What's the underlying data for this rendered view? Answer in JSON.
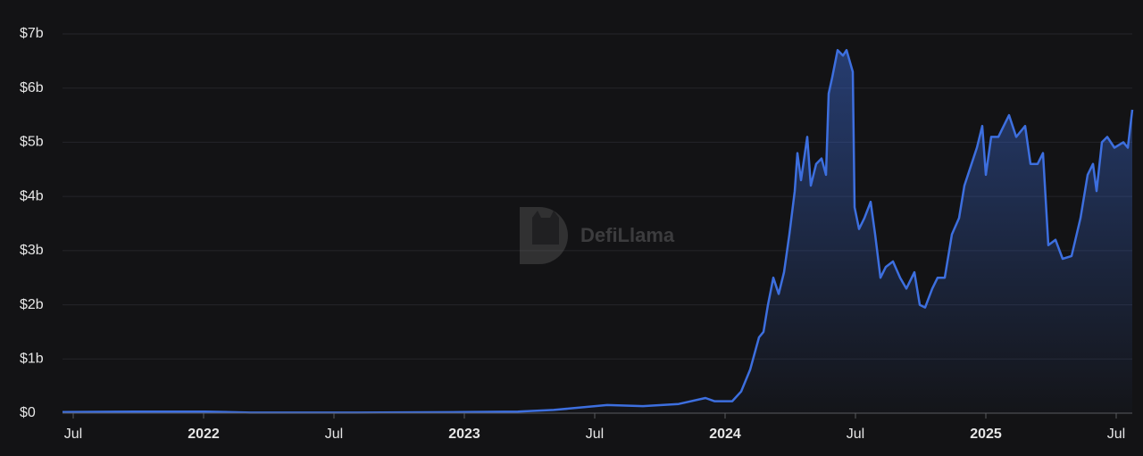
{
  "chart_data": {
    "type": "area",
    "watermark": "DefiLlama",
    "color": "#3d6fdf",
    "grid": true,
    "xlim": [
      2021.4589,
      2025.5616
    ],
    "ylim": [
      0,
      7
    ],
    "xticks": [
      {
        "value": 2021.5,
        "label": "Jul"
      },
      2022,
      {
        "value": 2022.5,
        "label": "Jul"
      },
      2023,
      {
        "value": 2023.5,
        "label": "Jul"
      },
      2024,
      {
        "value": 2024.5,
        "label": "Jul"
      },
      2025,
      {
        "value": 2025.5,
        "label": "Jul"
      }
    ],
    "yticks": [
      {
        "value": 0,
        "label": "$0"
      },
      {
        "value": 1,
        "label": "$1b"
      },
      {
        "value": 2,
        "label": "$2b"
      },
      {
        "value": 3,
        "label": "$3b"
      },
      {
        "value": 4,
        "label": "$4b"
      },
      {
        "value": 5,
        "label": "$5b"
      },
      {
        "value": 6,
        "label": "$6b"
      },
      {
        "value": 7,
        "label": "$7b"
      }
    ],
    "x": [
      2021.4589,
      2021.7329,
      2022.0068,
      2022.1781,
      2022.589,
      2023.0,
      2023.2055,
      2023.3425,
      2023.5479,
      2023.6849,
      2023.8219,
      2023.9247,
      2023.9589,
      2024.0274,
      2024.0616,
      2024.0959,
      2024.1301,
      2024.1473,
      2024.1644,
      2024.1849,
      2024.2055,
      2024.226,
      2024.2466,
      2024.2671,
      2024.2774,
      2024.2911,
      2024.3151,
      2024.3288,
      2024.3493,
      2024.3699,
      2024.387,
      2024.3973,
      2024.411,
      2024.4315,
      2024.4521,
      2024.4658,
      2024.4897,
      2024.4966,
      2024.5137,
      2024.5342,
      2024.5582,
      2024.5753,
      2024.5959,
      2024.6164,
      2024.6438,
      2024.6712,
      2024.6952,
      2024.726,
      2024.7466,
      2024.7671,
      2024.7945,
      2024.8151,
      2024.8425,
      2024.8699,
      2024.8973,
      2024.9178,
      2024.9452,
      2024.9658,
      2024.9863,
      2025.0,
      2025.0205,
      2025.0479,
      2025.0685,
      2025.089,
      2025.1164,
      2025.1507,
      2025.1712,
      2025.1986,
      2025.2192,
      2025.2397,
      2025.2671,
      2025.2945,
      2025.3288,
      2025.363,
      2025.3904,
      2025.411,
      2025.4247,
      2025.4452,
      2025.4658,
      2025.4932,
      2025.5274,
      2025.5445,
      2025.5616
    ],
    "values": [
      0.02,
      0.03,
      0.03,
      0.01,
      0.01,
      0.02,
      0.03,
      0.06,
      0.15,
      0.13,
      0.17,
      0.28,
      0.22,
      0.22,
      0.4,
      0.8,
      1.4,
      1.5,
      2.0,
      2.5,
      2.2,
      2.6,
      3.3,
      4.1,
      4.8,
      4.3,
      5.1,
      4.2,
      4.6,
      4.7,
      4.4,
      5.9,
      6.2,
      6.7,
      6.6,
      6.7,
      6.3,
      3.8,
      3.4,
      3.6,
      3.9,
      3.3,
      2.5,
      2.7,
      2.8,
      2.5,
      2.3,
      2.6,
      2.0,
      1.95,
      2.3,
      2.5,
      2.5,
      3.3,
      3.6,
      4.2,
      4.6,
      4.9,
      5.3,
      4.4,
      5.1,
      5.1,
      5.3,
      5.5,
      5.1,
      5.3,
      4.6,
      4.6,
      4.8,
      3.1,
      3.2,
      2.85,
      2.9,
      3.6,
      4.4,
      4.6,
      4.1,
      5.0,
      5.1,
      4.9,
      5.0,
      4.9,
      5.6
    ]
  }
}
